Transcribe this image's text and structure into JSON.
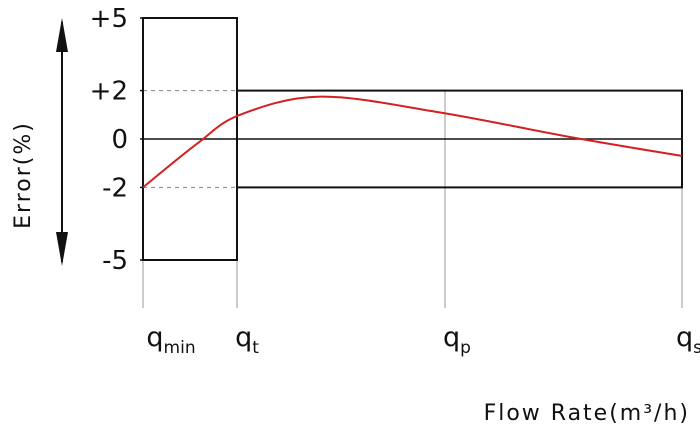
{
  "chart_data": {
    "type": "line",
    "title": "",
    "xlabel": "Flow Rate(m³/h)",
    "ylabel": "Error(%)",
    "x_categories": [
      {
        "base": "q",
        "sub": "min"
      },
      {
        "base": "q",
        "sub": "t"
      },
      {
        "base": "q",
        "sub": "p"
      },
      {
        "base": "q",
        "sub": "s"
      }
    ],
    "y_ticks": [
      {
        "value": 5,
        "label": "+5"
      },
      {
        "value": 2,
        "label": "+2"
      },
      {
        "value": 0,
        "label": "0"
      },
      {
        "value": -2,
        "label": "-2"
      },
      {
        "value": -5,
        "label": "-5"
      }
    ],
    "ylim": [
      -5,
      5
    ],
    "mpe_limits": {
      "low_range": {
        "from": "q_min",
        "to": "q_t",
        "upper": 5,
        "lower": -5
      },
      "high_range": {
        "from": "q_t",
        "to": "q_s",
        "upper": 2,
        "lower": -2
      }
    },
    "series": [
      {
        "color": "#d42020",
        "points": [
          {
            "x": 0.0,
            "y": -2.0
          },
          {
            "x": 0.1,
            "y": -0.2
          },
          {
            "x": 0.18,
            "y": 1.0
          },
          {
            "x": 0.33,
            "y": 1.75
          },
          {
            "x": 0.55,
            "y": 1.1
          },
          {
            "x": 0.8,
            "y": 0.05
          },
          {
            "x": 1.0,
            "y": -0.7
          }
        ]
      }
    ],
    "grid": true,
    "legend": "none"
  }
}
